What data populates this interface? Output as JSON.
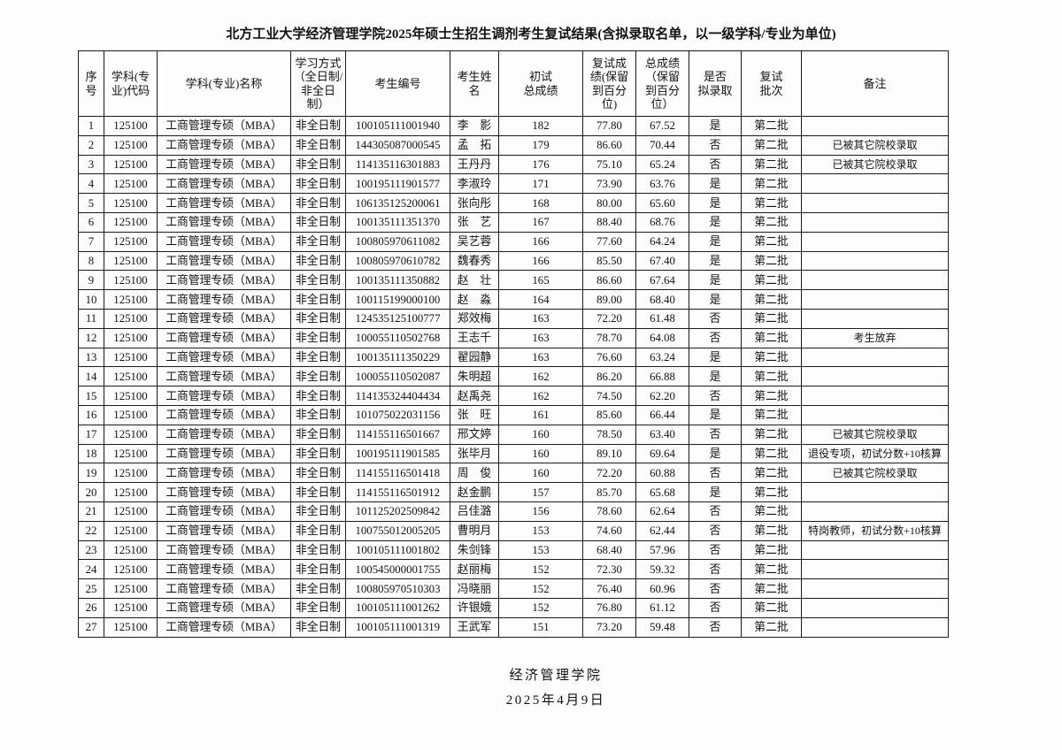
{
  "page": {
    "title": "北方工业大学经济管理学院2025年硕士生招生调剂考生复试结果(含拟录取名单，以一级学科/专业为单位)"
  },
  "table": {
    "column_keys": [
      "index",
      "subject_code",
      "subject_name",
      "study_mode",
      "candidate_no",
      "name",
      "initial_score",
      "retest_score",
      "total_score",
      "admitted",
      "batch",
      "remark"
    ],
    "headers": [
      "序号",
      "学科(专\n业)代码",
      "学科(专业)名称",
      "学习方式\n（全日制/\n非全日\n制）",
      "考生编号",
      "考生姓\n名",
      "初试\n总成绩",
      "复试成\n绩(保留\n到百分\n位)",
      "总成绩\n（保留\n到百分\n位）",
      "是否\n拟录取",
      "复试\n批次",
      "备注"
    ],
    "rows": [
      [
        "1",
        "125100",
        "工商管理专硕（MBA）",
        "非全日制",
        "100105111001940",
        "李影",
        "182",
        "77.80",
        "67.52",
        "是",
        "第二批",
        ""
      ],
      [
        "2",
        "125100",
        "工商管理专硕（MBA）",
        "非全日制",
        "144305087000545",
        "孟拓",
        "179",
        "86.60",
        "70.44",
        "否",
        "第二批",
        "已被其它院校录取"
      ],
      [
        "3",
        "125100",
        "工商管理专硕（MBA）",
        "非全日制",
        "114135116301883",
        "王丹丹",
        "176",
        "75.10",
        "65.24",
        "否",
        "第二批",
        "已被其它院校录取"
      ],
      [
        "4",
        "125100",
        "工商管理专硕（MBA）",
        "非全日制",
        "100195111901577",
        "李淑玲",
        "171",
        "73.90",
        "63.76",
        "是",
        "第二批",
        ""
      ],
      [
        "5",
        "125100",
        "工商管理专硕（MBA）",
        "非全日制",
        "106135125200061",
        "张向彤",
        "168",
        "80.00",
        "65.60",
        "是",
        "第二批",
        ""
      ],
      [
        "6",
        "125100",
        "工商管理专硕（MBA）",
        "非全日制",
        "100135111351370",
        "张艺",
        "167",
        "88.40",
        "68.76",
        "是",
        "第二批",
        ""
      ],
      [
        "7",
        "125100",
        "工商管理专硕（MBA）",
        "非全日制",
        "100805970611082",
        "吴艺蓉",
        "166",
        "77.60",
        "64.24",
        "是",
        "第二批",
        ""
      ],
      [
        "8",
        "125100",
        "工商管理专硕（MBA）",
        "非全日制",
        "100805970610782",
        "魏春秀",
        "166",
        "85.50",
        "67.40",
        "是",
        "第二批",
        ""
      ],
      [
        "9",
        "125100",
        "工商管理专硕（MBA）",
        "非全日制",
        "100135111350882",
        "赵壮",
        "165",
        "86.60",
        "67.64",
        "是",
        "第二批",
        ""
      ],
      [
        "10",
        "125100",
        "工商管理专硕（MBA）",
        "非全日制",
        "100115199000100",
        "赵淼",
        "164",
        "89.00",
        "68.40",
        "是",
        "第二批",
        ""
      ],
      [
        "11",
        "125100",
        "工商管理专硕（MBA）",
        "非全日制",
        "124535125100777",
        "郑效梅",
        "163",
        "72.20",
        "61.48",
        "否",
        "第二批",
        ""
      ],
      [
        "12",
        "125100",
        "工商管理专硕（MBA）",
        "非全日制",
        "100055110502768",
        "王志千",
        "163",
        "78.70",
        "64.08",
        "否",
        "第二批",
        "考生放弃"
      ],
      [
        "13",
        "125100",
        "工商管理专硕（MBA）",
        "非全日制",
        "100135111350229",
        "翟园静",
        "163",
        "76.60",
        "63.24",
        "是",
        "第二批",
        ""
      ],
      [
        "14",
        "125100",
        "工商管理专硕（MBA）",
        "非全日制",
        "100055110502087",
        "朱明超",
        "162",
        "86.20",
        "66.88",
        "是",
        "第二批",
        ""
      ],
      [
        "15",
        "125100",
        "工商管理专硕（MBA）",
        "非全日制",
        "114135324404434",
        "赵禹尧",
        "162",
        "74.50",
        "62.20",
        "否",
        "第二批",
        ""
      ],
      [
        "16",
        "125100",
        "工商管理专硕（MBA）",
        "非全日制",
        "101075022031156",
        "张旺",
        "161",
        "85.60",
        "66.44",
        "是",
        "第二批",
        ""
      ],
      [
        "17",
        "125100",
        "工商管理专硕（MBA）",
        "非全日制",
        "114155116501667",
        "邢文婷",
        "160",
        "78.50",
        "63.40",
        "否",
        "第二批",
        "已被其它院校录取"
      ],
      [
        "18",
        "125100",
        "工商管理专硕（MBA）",
        "非全日制",
        "100195111901585",
        "张毕月",
        "160",
        "89.10",
        "69.64",
        "是",
        "第二批",
        "退役专项，初试分数+10核算"
      ],
      [
        "19",
        "125100",
        "工商管理专硕（MBA）",
        "非全日制",
        "114155116501418",
        "周俊",
        "160",
        "72.20",
        "60.88",
        "否",
        "第二批",
        "已被其它院校录取"
      ],
      [
        "20",
        "125100",
        "工商管理专硕（MBA）",
        "非全日制",
        "114155116501912",
        "赵金鹏",
        "157",
        "85.70",
        "65.68",
        "是",
        "第二批",
        ""
      ],
      [
        "21",
        "125100",
        "工商管理专硕（MBA）",
        "非全日制",
        "101125202509842",
        "吕佳潞",
        "156",
        "78.60",
        "62.64",
        "否",
        "第二批",
        ""
      ],
      [
        "22",
        "125100",
        "工商管理专硕（MBA）",
        "非全日制",
        "100755012005205",
        "曹明月",
        "153",
        "74.60",
        "62.44",
        "否",
        "第二批",
        "特岗教师，初试分数+10核算"
      ],
      [
        "23",
        "125100",
        "工商管理专硕（MBA）",
        "非全日制",
        "100105111001802",
        "朱剑锋",
        "153",
        "68.40",
        "57.96",
        "否",
        "第二批",
        ""
      ],
      [
        "24",
        "125100",
        "工商管理专硕（MBA）",
        "非全日制",
        "100545000001755",
        "赵丽梅",
        "152",
        "72.30",
        "59.32",
        "否",
        "第二批",
        ""
      ],
      [
        "25",
        "125100",
        "工商管理专硕（MBA）",
        "非全日制",
        "100805970510303",
        "冯晓丽",
        "152",
        "76.40",
        "60.96",
        "否",
        "第二批",
        ""
      ],
      [
        "26",
        "125100",
        "工商管理专硕（MBA）",
        "非全日制",
        "100105111001262",
        "许银娥",
        "152",
        "76.80",
        "61.12",
        "否",
        "第二批",
        ""
      ],
      [
        "27",
        "125100",
        "工商管理专硕（MBA）",
        "非全日制",
        "100105111001319",
        "王武军",
        "151",
        "73.20",
        "59.48",
        "否",
        "第二批",
        ""
      ]
    ]
  },
  "footer": {
    "signature": "经济管理学院",
    "date": "2025年4月9日"
  }
}
